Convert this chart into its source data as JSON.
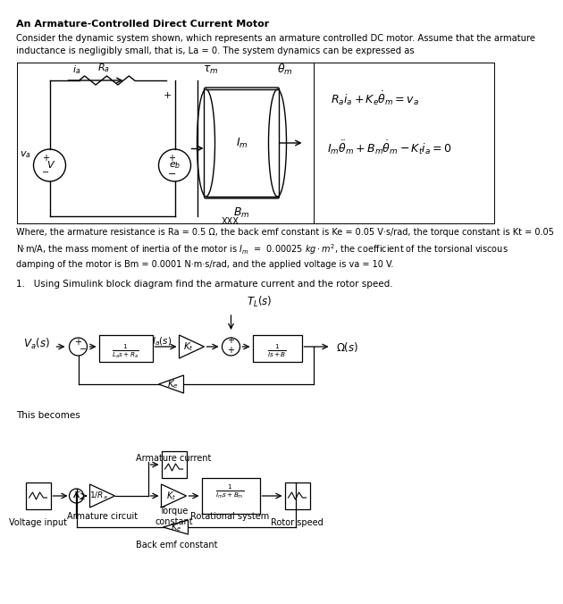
{
  "title": "An Armature-Controlled Direct Current Motor",
  "intro_text": "Consider the dynamic system shown, which represents an armature controlled DC motor. Assume that the armature\ninductance is negligibly small, that is, La = 0. The system dynamics can be expressed as",
  "eq1": "$R_a i_a + K_e \\dot{\\theta}_m = v_a$",
  "eq2": "$I_m \\ddot{\\theta}_m + B_m \\dot{\\theta}_m - K_t i_a = 0$",
  "params_text": "Where, the armature resistance is Ra = 0.5 Ω, the back emf constant is Ke = 0.05 V·s/rad, the torque constant is Kt = 0.05\nN·m/A, the mass moment of inertia of the motor is $I_m$ = 0.00025 kg · m², the coefficient of the torsional viscous\ndamping of the motor is Bm = 0.0001 N·m·s/rad, and the applied voltage is va = 10 V.",
  "question": "1.   Using Simulink block diagram find the armature current and the rotor speed.",
  "this_becomes": "This becomes",
  "bg_color": "#ffffff"
}
